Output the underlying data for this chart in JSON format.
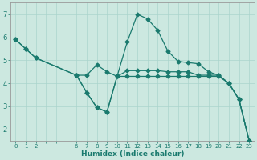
{
  "xlabel": "Humidex (Indice chaleur)",
  "bg_color": "#cce8e0",
  "line_color": "#1a7a6e",
  "grid_color": "#aad4cc",
  "ylim": [
    1.5,
    7.5
  ],
  "yticks": [
    2,
    3,
    4,
    5,
    6,
    7
  ],
  "xtick_labels": [
    "0",
    "1",
    "2",
    "",
    "",
    "",
    "6",
    "7",
    "8",
    "9",
    "10",
    "11",
    "12",
    "13",
    "14",
    "15",
    "16",
    "17",
    "18",
    "19",
    "20",
    "21",
    "22",
    "23"
  ],
  "curve1_x": [
    0,
    1,
    2,
    6,
    7,
    8,
    9,
    10,
    11,
    12,
    13,
    14,
    15,
    16,
    17,
    18,
    19,
    20,
    21,
    22,
    23
  ],
  "curve1_y": [
    5.9,
    5.5,
    5.1,
    4.35,
    4.35,
    4.8,
    4.5,
    4.3,
    4.3,
    4.3,
    4.3,
    4.3,
    4.3,
    4.3,
    4.3,
    4.3,
    4.3,
    4.3,
    4.0,
    3.3,
    1.5
  ],
  "curve2_x": [
    0,
    1,
    2,
    6,
    7,
    8,
    9,
    10,
    11,
    12,
    13,
    14,
    15,
    16,
    17,
    18,
    19,
    20,
    21,
    22,
    23
  ],
  "curve2_y": [
    5.9,
    5.5,
    5.1,
    4.35,
    3.6,
    2.95,
    2.75,
    4.3,
    5.8,
    7.0,
    6.8,
    6.3,
    5.4,
    4.95,
    4.9,
    4.85,
    4.5,
    4.35,
    4.0,
    3.3,
    1.5
  ],
  "curve3_x": [
    6,
    7,
    8,
    9,
    10,
    11,
    12,
    13,
    14,
    15,
    16,
    17,
    18,
    19,
    20,
    21,
    22,
    23
  ],
  "curve3_y": [
    4.35,
    3.6,
    2.95,
    2.75,
    4.3,
    4.55,
    4.55,
    4.55,
    4.55,
    4.5,
    4.5,
    4.5,
    4.35,
    4.35,
    4.35,
    4.0,
    3.3,
    1.5
  ]
}
